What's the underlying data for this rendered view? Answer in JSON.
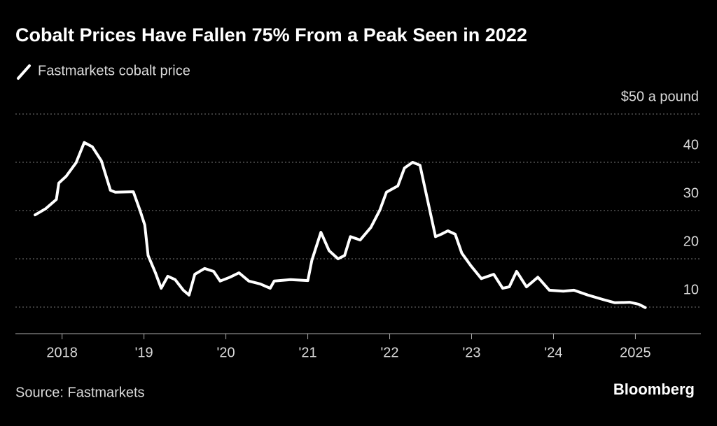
{
  "chart_data": {
    "type": "line",
    "title": "Cobalt Prices Have Fallen 75% From a Peak Seen in 2022",
    "series": [
      {
        "name": "Fastmarkets cobalt price",
        "color": "#ffffff",
        "x": [
          2017.67,
          2017.8,
          2017.93,
          2017.96,
          2018.05,
          2018.17,
          2018.27,
          2018.37,
          2018.48,
          2018.59,
          2018.65,
          2018.87,
          2018.95,
          2019.01,
          2019.05,
          2019.14,
          2019.21,
          2019.29,
          2019.38,
          2019.48,
          2019.55,
          2019.62,
          2019.74,
          2019.85,
          2019.93,
          2020.05,
          2020.16,
          2020.28,
          2020.42,
          2020.54,
          2020.59,
          2020.79,
          2021.0,
          2021.05,
          2021.16,
          2021.26,
          2021.37,
          2021.45,
          2021.52,
          2021.64,
          2021.77,
          2021.88,
          2021.96,
          2022.1,
          2022.18,
          2022.28,
          2022.37,
          2022.47,
          2022.56,
          2022.63,
          2022.71,
          2022.8,
          2022.88,
          2022.99,
          2023.12,
          2023.27,
          2023.38,
          2023.46,
          2023.55,
          2023.67,
          2023.81,
          2023.95,
          2024.12,
          2024.25,
          2024.42,
          2024.6,
          2024.75,
          2024.93,
          2025.04,
          2025.12
        ],
        "values": [
          29.1,
          30.4,
          32.3,
          35.7,
          37.1,
          39.9,
          44.1,
          43.2,
          40.3,
          34.2,
          33.8,
          33.9,
          30.1,
          27.0,
          20.7,
          17.1,
          13.9,
          16.4,
          15.7,
          13.5,
          12.5,
          16.8,
          18.0,
          17.4,
          15.4,
          16.2,
          17.1,
          15.4,
          14.8,
          13.9,
          15.4,
          15.7,
          15.5,
          19.7,
          25.5,
          21.7,
          20.0,
          20.7,
          24.6,
          23.9,
          26.5,
          30.1,
          33.8,
          35.1,
          38.8,
          40.0,
          39.4,
          31.6,
          24.6,
          25.1,
          25.8,
          25.1,
          21.2,
          18.6,
          15.9,
          16.8,
          13.9,
          14.2,
          17.4,
          14.2,
          16.2,
          13.5,
          13.3,
          13.5,
          12.5,
          11.6,
          10.9,
          11.0,
          10.6,
          9.9
        ]
      }
    ],
    "xlim": [
      2017.43,
      2025.8
    ],
    "xticks": [
      2018,
      {
        "value": 2019,
        "label": "'19"
      },
      {
        "value": 2020,
        "label": "'20"
      },
      {
        "value": 2021,
        "label": "'21"
      },
      {
        "value": 2022,
        "label": "'22"
      },
      {
        "value": 2023,
        "label": "'23"
      },
      {
        "value": 2024,
        "label": "'24"
      },
      2025
    ],
    "ylim": [
      4.5,
      50
    ],
    "yticks": [
      10,
      20,
      30,
      40,
      {
        "value": 50,
        "label": "$50 a pound"
      }
    ],
    "grid": true
  },
  "footer": {
    "source": "Source: Fastmarkets",
    "brand": "Bloomberg"
  }
}
